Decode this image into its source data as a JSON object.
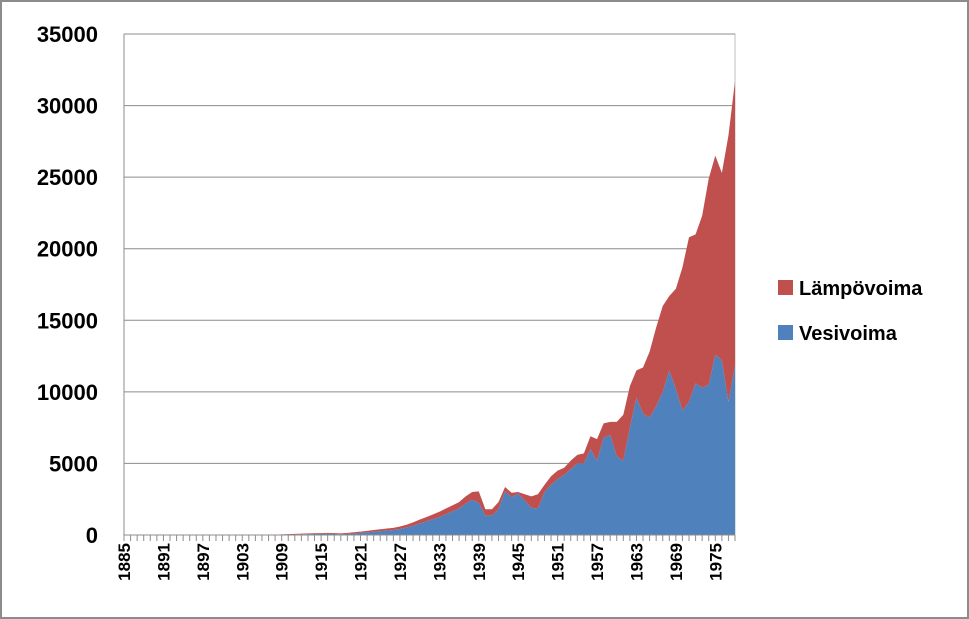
{
  "chart_data": {
    "type": "area",
    "stacked": true,
    "title": "",
    "xlabel": "",
    "ylabel": "",
    "ylim": [
      0,
      35000
    ],
    "y_ticks": [
      0,
      5000,
      10000,
      15000,
      20000,
      25000,
      30000,
      35000
    ],
    "x_range": [
      1885,
      1978
    ],
    "x_tick_labels": [
      "1885",
      "1891",
      "1897",
      "1903",
      "1909",
      "1915",
      "1921",
      "1927",
      "1933",
      "1939",
      "1945",
      "1951",
      "1957",
      "1963",
      "1969",
      "1975"
    ],
    "grid": "horizontal",
    "legend_position": "right",
    "series": [
      {
        "name": "Vesivoima",
        "color": "#4f81bd",
        "x": [
          1885,
          1890,
          1895,
          1900,
          1905,
          1908,
          1910,
          1912,
          1914,
          1916,
          1917,
          1918,
          1919,
          1920,
          1921,
          1922,
          1923,
          1924,
          1925,
          1926,
          1927,
          1928,
          1929,
          1930,
          1931,
          1932,
          1933,
          1934,
          1935,
          1936,
          1937,
          1938,
          1939,
          1940,
          1941,
          1942,
          1943,
          1944,
          1945,
          1946,
          1947,
          1948,
          1949,
          1950,
          1951,
          1952,
          1953,
          1954,
          1955,
          1956,
          1957,
          1958,
          1959,
          1960,
          1961,
          1962,
          1963,
          1964,
          1965,
          1966,
          1967,
          1968,
          1969,
          1970,
          1971,
          1972,
          1973,
          1974,
          1975,
          1976,
          1977,
          1978
        ],
        "values": [
          0,
          0,
          0,
          0,
          5,
          15,
          30,
          50,
          70,
          90,
          70,
          50,
          80,
          110,
          150,
          190,
          230,
          270,
          310,
          350,
          420,
          520,
          650,
          800,
          950,
          1100,
          1250,
          1450,
          1650,
          1850,
          2200,
          2450,
          2250,
          1350,
          1350,
          1800,
          3050,
          2650,
          2900,
          2400,
          1900,
          1850,
          3000,
          3500,
          3900,
          4200,
          4600,
          5000,
          5000,
          6000,
          5200,
          6800,
          7000,
          5500,
          5200,
          7500,
          9600,
          8500,
          8200,
          9000,
          10000,
          11500,
          10200,
          8700,
          9300,
          10600,
          10300,
          10500,
          12600,
          12200,
          9300,
          11900
        ]
      },
      {
        "name": "Lämpövoima",
        "color": "#c0504d",
        "x": [
          1885,
          1890,
          1895,
          1900,
          1905,
          1908,
          1910,
          1912,
          1914,
          1916,
          1917,
          1918,
          1919,
          1920,
          1921,
          1922,
          1923,
          1924,
          1925,
          1926,
          1927,
          1928,
          1929,
          1930,
          1931,
          1932,
          1933,
          1934,
          1935,
          1936,
          1937,
          1938,
          1939,
          1940,
          1941,
          1942,
          1943,
          1944,
          1945,
          1946,
          1947,
          1948,
          1949,
          1950,
          1951,
          1952,
          1953,
          1954,
          1955,
          1956,
          1957,
          1958,
          1959,
          1960,
          1961,
          1962,
          1963,
          1964,
          1965,
          1966,
          1967,
          1968,
          1969,
          1970,
          1971,
          1972,
          1973,
          1974,
          1975,
          1976,
          1977,
          1978
        ],
        "values": [
          0,
          0,
          0,
          0,
          5,
          15,
          30,
          50,
          50,
          60,
          60,
          60,
          70,
          80,
          90,
          100,
          120,
          130,
          140,
          150,
          170,
          200,
          230,
          270,
          300,
          330,
          370,
          400,
          420,
          450,
          500,
          550,
          800,
          450,
          450,
          500,
          300,
          300,
          100,
          450,
          800,
          1000,
          500,
          600,
          600,
          500,
          600,
          600,
          700,
          900,
          1500,
          1000,
          900,
          2400,
          3200,
          2900,
          1900,
          3200,
          4600,
          5500,
          6000,
          5200,
          7000,
          10000,
          11500,
          10400,
          12000,
          14400,
          13900,
          13100,
          18600,
          19800
        ]
      }
    ]
  }
}
